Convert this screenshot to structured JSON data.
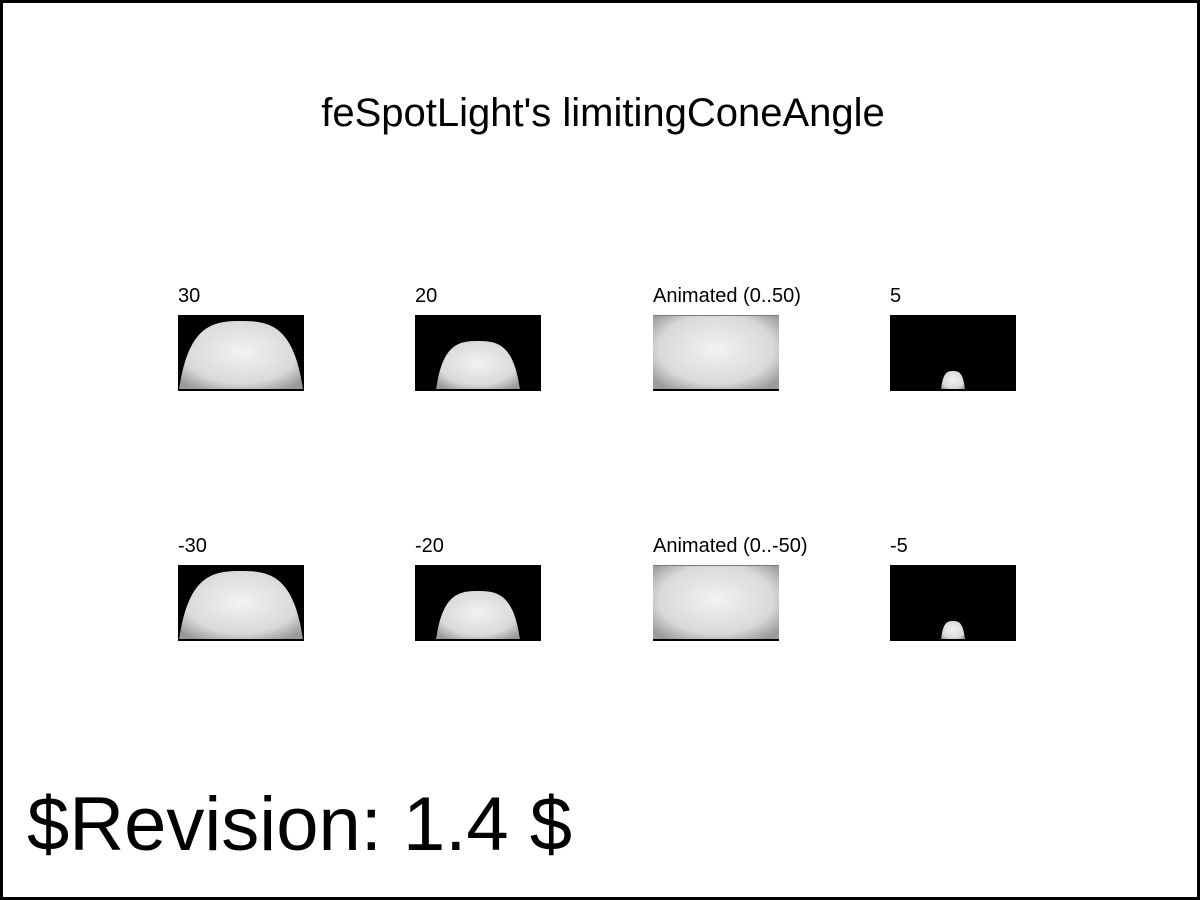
{
  "title": "feSpotLight's limitingConeAngle",
  "revision": "$Revision: 1.4 $",
  "rows": [
    {
      "cells": [
        {
          "label": "30",
          "kind": "cone",
          "cone_angle": 30
        },
        {
          "label": "20",
          "kind": "cone",
          "cone_angle": 20
        },
        {
          "label": "Animated (0..50)",
          "kind": "animated",
          "cone_angle": 50
        },
        {
          "label": "5",
          "kind": "cone",
          "cone_angle": 5
        }
      ]
    },
    {
      "cells": [
        {
          "label": "-30",
          "kind": "cone",
          "cone_angle": -30
        },
        {
          "label": "-20",
          "kind": "cone",
          "cone_angle": -20
        },
        {
          "label": "Animated (0..-50)",
          "kind": "animated",
          "cone_angle": -50
        },
        {
          "label": "-5",
          "kind": "cone",
          "cone_angle": -5
        }
      ]
    }
  ],
  "colors": {
    "background": "#ffffff",
    "border": "#000000",
    "swatch_dark": "#000000",
    "light_center": "#f2f2f2",
    "light_edge": "#9a9a9a"
  }
}
